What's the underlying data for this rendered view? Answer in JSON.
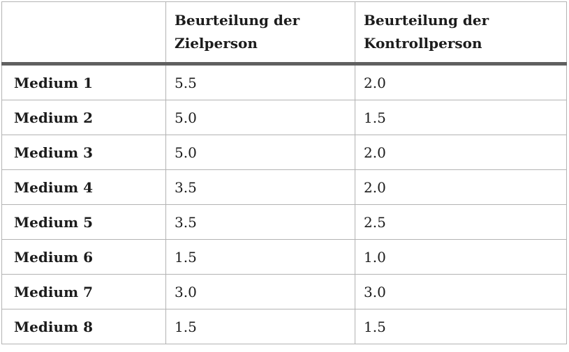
{
  "table": {
    "style": {
      "border_color": "#b3b3b3",
      "header_separator_color": "#606060",
      "text_color": "#1c1c1c",
      "background_color": "#ffffff"
    },
    "header": {
      "col1": "",
      "col2": [
        "Beurteilung der",
        "Zielperson"
      ],
      "col3": [
        "Beurteilung der",
        "Kontrollperson"
      ]
    },
    "rows": [
      {
        "label": "Medium 1",
        "zielperson": "5.5",
        "kontrollperson": "2.0"
      },
      {
        "label": "Medium 2",
        "zielperson": "5.0",
        "kontrollperson": "1.5"
      },
      {
        "label": "Medium 3",
        "zielperson": "5.0",
        "kontrollperson": "2.0"
      },
      {
        "label": "Medium 4",
        "zielperson": "3.5",
        "kontrollperson": "2.0"
      },
      {
        "label": "Medium 5",
        "zielperson": "3.5",
        "kontrollperson": "2.5"
      },
      {
        "label": "Medium 6",
        "zielperson": "1.5",
        "kontrollperson": "1.0"
      },
      {
        "label": "Medium 7",
        "zielperson": "3.0",
        "kontrollperson": "3.0"
      },
      {
        "label": "Medium 8",
        "zielperson": "1.5",
        "kontrollperson": "1.5"
      }
    ]
  }
}
